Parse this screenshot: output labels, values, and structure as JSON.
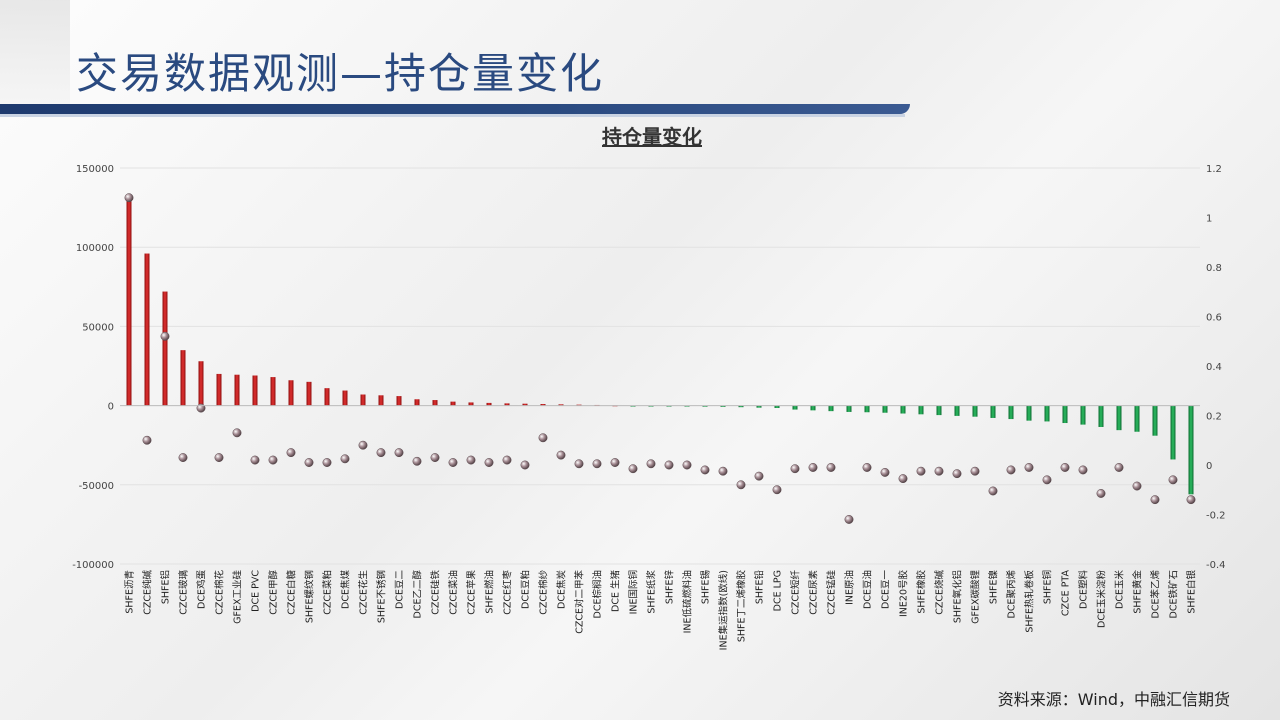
{
  "page": {
    "title": "交易数据观测—持仓量变化",
    "source": "资料来源：Wind，中融汇信期货"
  },
  "colors": {
    "title": "#2a4a80",
    "positive_bar": "#cc1f1f",
    "negative_bar": "#1a9a4a",
    "marker": "#8f7a7f",
    "grid": "#e0e0e0"
  },
  "chart_data": {
    "type": "bar",
    "title": "持仓量变化",
    "categories": [
      "SHFE沥青",
      "CZCE纯碱",
      "SHFE铝",
      "CZCE玻璃",
      "DCE鸡蛋",
      "CZCE棉花",
      "GFEX工业硅",
      "DCE PVC",
      "CZCE甲醇",
      "CZCE白糖",
      "SHFE螺纹钢",
      "CZCE菜粕",
      "DCE焦煤",
      "CZCE花生",
      "SHFE不锈钢",
      "DCE豆二",
      "DCE乙二醇",
      "CZCE硅铁",
      "CZCE菜油",
      "CZCE苹果",
      "SHFE燃油",
      "CZCE红枣",
      "DCE豆粕",
      "CZCE棉纱",
      "DCE焦炭",
      "CZCE对二甲苯",
      "DCE棕榈油",
      "DCE 生猪",
      "INE国际铜",
      "SHFE纸浆",
      "SHFE锌",
      "INE低硫燃料油",
      "SHFE锡",
      "INE集运指数(欧线)",
      "SHFE丁二烯橡胶",
      "SHFE铅",
      "DCE LPG",
      "CZCE短纤",
      "CZCE尿素",
      "CZCE锰硅",
      "INE原油",
      "DCE豆油",
      "DCE豆一",
      "INE20号胶",
      "SHFE橡胶",
      "CZCE烧碱",
      "SHFE氧化铝",
      "GFEX碳酸锂",
      "SHFE镍",
      "DCE聚丙烯",
      "SHFE热轧卷板",
      "SHFE铜",
      "CZCE PTA",
      "DCE塑料",
      "DCE玉米淀粉",
      "DCE玉米",
      "SHFE黄金",
      "DCE苯乙烯",
      "DCE铁矿石",
      "SHFE白银"
    ],
    "series": [
      {
        "axis": "left",
        "kind": "bar",
        "values": [
          131000,
          96000,
          72000,
          35000,
          28000,
          20000,
          19500,
          19000,
          18000,
          16000,
          15000,
          11000,
          9500,
          7000,
          6500,
          6000,
          4000,
          3500,
          2500,
          2000,
          1700,
          1400,
          1200,
          1000,
          800,
          600,
          400,
          200,
          -300,
          -400,
          -500,
          -600,
          -700,
          -800,
          -1000,
          -1300,
          -1500,
          -2500,
          -3000,
          -3500,
          -4000,
          -4200,
          -4500,
          -5000,
          -5500,
          -6000,
          -6500,
          -7000,
          -7800,
          -8500,
          -9500,
          -10000,
          -11000,
          -12000,
          -13500,
          -15500,
          -16500,
          -19000,
          -34000,
          -56000
        ]
      },
      {
        "axis": "right",
        "kind": "marker",
        "values": [
          1.08,
          0.1,
          0.52,
          0.03,
          0.23,
          0.03,
          0.13,
          0.02,
          0.02,
          0.05,
          0.01,
          0.01,
          0.025,
          0.08,
          0.05,
          0.05,
          0.015,
          0.03,
          0.01,
          0.02,
          0.01,
          0.02,
          0.0,
          0.11,
          0.04,
          0.005,
          0.005,
          0.01,
          -0.015,
          0.005,
          0.0,
          0.0,
          -0.02,
          -0.025,
          -0.08,
          -0.045,
          -0.1,
          -0.015,
          -0.01,
          -0.01,
          -0.22,
          -0.01,
          -0.03,
          -0.055,
          -0.025,
          -0.025,
          -0.035,
          -0.025,
          -0.105,
          -0.02,
          -0.01,
          -0.06,
          -0.01,
          -0.02,
          -0.115,
          -0.01,
          -0.085,
          -0.14,
          -0.06,
          -0.14
        ]
      }
    ],
    "left_axis": {
      "ylim": [
        -100000,
        150000
      ],
      "ticks": [
        "150000",
        "100000",
        "50000",
        "0",
        "-50000",
        "-100000"
      ]
    },
    "right_axis": {
      "ylim": [
        -0.4,
        1.2
      ],
      "ticks": [
        "1.2",
        "1",
        "0.8",
        "0.6",
        "0.4",
        "0.2",
        "0",
        "-0.2",
        "-0.4"
      ]
    },
    "grid": true,
    "legend": "none"
  }
}
